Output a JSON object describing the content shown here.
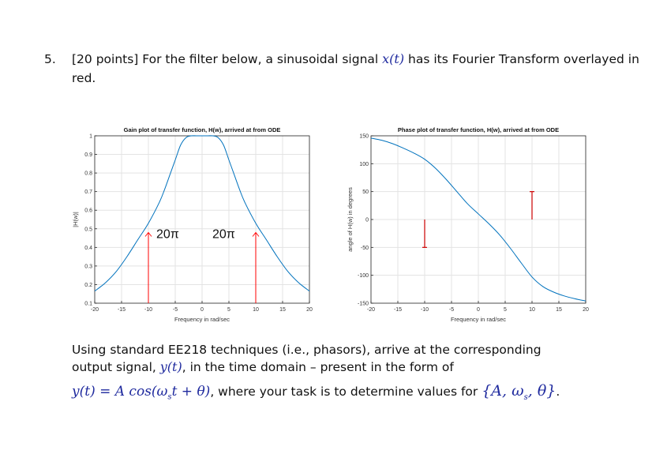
{
  "question": {
    "number": "5.",
    "text_before_signal": "[20 points]  For the filter below, a sinusoidal signal ",
    "signal": "x(t)",
    "text_after_signal": " has its Fourier Transform overlayed in red."
  },
  "chart_data": [
    {
      "type": "line",
      "title": "Gain plot of transfer function, H(w), arrived at from ODE",
      "xlabel": "Frequency in rad/sec",
      "ylabel": "|H(w)|",
      "xlim": [
        -20,
        20
      ],
      "ylim": [
        0.1,
        1
      ],
      "xticks": [
        "-20",
        "-15",
        "-10",
        "-5",
        "0",
        "5",
        "10",
        "15",
        "20"
      ],
      "yticks": [
        "0.1",
        "0.2",
        "0.3",
        "0.4",
        "0.5",
        "0.6",
        "0.7",
        "0.8",
        "0.9",
        "1"
      ],
      "grid": true,
      "series": [
        {
          "color": "#0072bd",
          "x": [
            -20,
            -18,
            -16,
            -14,
            -12,
            -10,
            -8,
            -7,
            -6,
            -5,
            -4,
            -3,
            -2,
            -1,
            0,
            1,
            2,
            3,
            4,
            5,
            6,
            7,
            8,
            10,
            12,
            14,
            16,
            18,
            20
          ],
          "y": [
            0.165,
            0.21,
            0.27,
            0.35,
            0.44,
            0.53,
            0.64,
            0.71,
            0.79,
            0.87,
            0.95,
            0.99,
            1.0,
            1.0,
            1.0,
            1.0,
            1.0,
            0.99,
            0.95,
            0.87,
            0.79,
            0.71,
            0.64,
            0.53,
            0.44,
            0.35,
            0.27,
            0.21,
            0.165
          ]
        }
      ],
      "impulses": {
        "color": "#ff0000",
        "x": [
          -10,
          10
        ],
        "top": [
          0.48,
          0.48
        ],
        "labels": [
          "20π",
          "20π"
        ]
      }
    },
    {
      "type": "line",
      "title": "Phase plot of transfer function, H(w), arrived at from ODE",
      "xlabel": "Frequency in rad/sec",
      "ylabel": "angle of H(w) in degrees",
      "xlim": [
        -20,
        20
      ],
      "ylim": [
        -150,
        150
      ],
      "xticks": [
        "-20",
        "-15",
        "-10",
        "-5",
        "0",
        "5",
        "10",
        "15",
        "20"
      ],
      "yticks": [
        "-150",
        "-100",
        "-50",
        "0",
        "50",
        "100",
        "150"
      ],
      "grid": true,
      "series": [
        {
          "color": "#0072bd",
          "x": [
            -20,
            -18,
            -16,
            -14,
            -12,
            -10,
            -8,
            -6,
            -4,
            -2,
            0,
            2,
            4,
            6,
            8,
            10,
            12,
            14,
            16,
            18,
            20
          ],
          "y": [
            146,
            142,
            136,
            128,
            119,
            108,
            92,
            72,
            50,
            28,
            10,
            -8,
            -28,
            -52,
            -78,
            -103,
            -120,
            -130,
            -137,
            -142,
            -146
          ]
        }
      ],
      "phase_markers": {
        "color": "#cc0000",
        "x": [
          -10,
          10
        ],
        "from": [
          0,
          0
        ],
        "to": [
          -50,
          50
        ]
      }
    }
  ],
  "bottom": {
    "line1": "Using standard EE218 techniques (i.e., phasors), arrive at the corresponding",
    "line2_before": "output signal, ",
    "output_signal": "y(t)",
    "line2_after": ", in the time domain – present in the form of",
    "eq_left": "y(t) = A cos(ω",
    "eq_sub": "s",
    "eq_right": "t + θ)",
    "eq_text": ", where your task is to determine values for ",
    "params": "{A, ω",
    "params_sub": "s",
    "params_end": ", θ}",
    "period": "."
  }
}
